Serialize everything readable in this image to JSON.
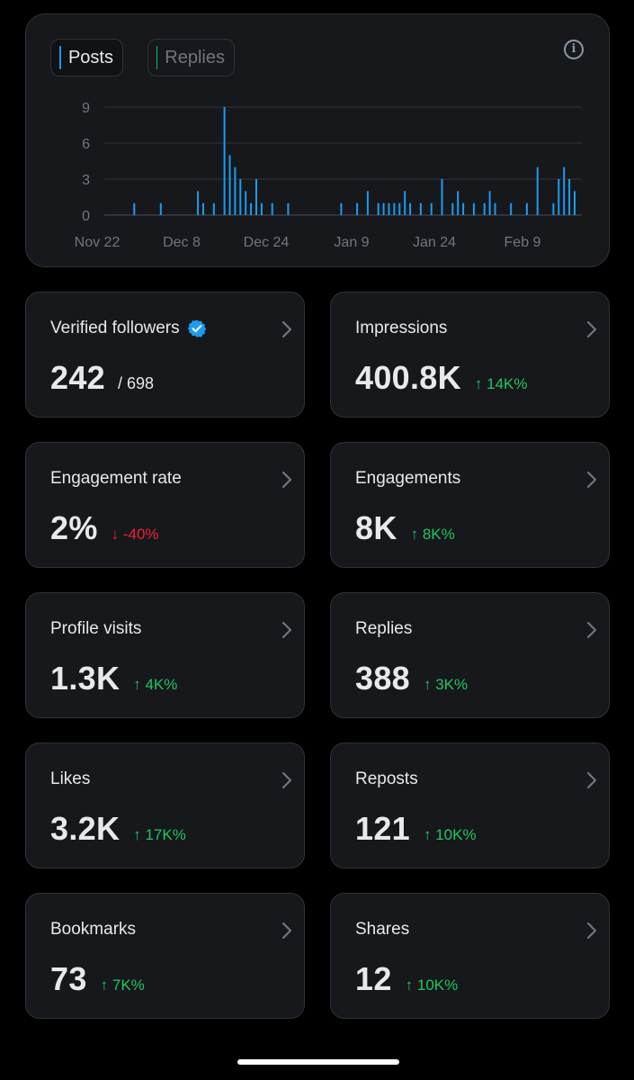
{
  "chart": {
    "tabs": [
      {
        "label": "Posts",
        "color": "#1d9bf0",
        "active": true
      },
      {
        "label": "Replies",
        "color": "#00ba7c",
        "active": false
      }
    ]
  },
  "chart_data": {
    "type": "bar",
    "series": [
      {
        "name": "Posts",
        "color": "#1d9bf0"
      }
    ],
    "x_ticks": [
      "Nov 22",
      "Dec 8",
      "Dec 24",
      "Jan 9",
      "Jan 24",
      "Feb 9"
    ],
    "y_ticks": [
      0,
      3,
      6,
      9
    ],
    "ylim": [
      0,
      9
    ],
    "xlim": [
      "2023-11-22",
      "2024-02-23"
    ],
    "x": [
      "2023-11-29",
      "2023-12-04",
      "2023-12-11",
      "2023-12-12",
      "2023-12-14",
      "2023-12-16",
      "2023-12-17",
      "2023-12-18",
      "2023-12-19",
      "2023-12-20",
      "2023-12-21",
      "2023-12-22",
      "2023-12-23",
      "2023-12-25",
      "2023-12-28",
      "2024-01-07",
      "2024-01-10",
      "2024-01-12",
      "2024-01-14",
      "2024-01-15",
      "2024-01-16",
      "2024-01-17",
      "2024-01-18",
      "2024-01-19",
      "2024-01-20",
      "2024-01-22",
      "2024-01-24",
      "2024-01-26",
      "2024-01-28",
      "2024-01-29",
      "2024-01-30",
      "2024-02-01",
      "2024-02-03",
      "2024-02-04",
      "2024-02-05",
      "2024-02-08",
      "2024-02-11",
      "2024-02-13",
      "2024-02-16",
      "2024-02-17",
      "2024-02-18",
      "2024-02-19",
      "2024-02-20"
    ],
    "values": [
      1,
      1,
      2,
      1,
      1,
      9,
      5,
      4,
      3,
      2,
      1,
      3,
      1,
      1,
      1,
      1,
      1,
      2,
      1,
      1,
      1,
      1,
      1,
      2,
      1,
      1,
      1,
      3,
      1,
      2,
      1,
      1,
      1,
      2,
      1,
      1,
      1,
      4,
      1,
      3,
      4,
      3,
      2
    ],
    "grid": true
  },
  "stats": [
    {
      "label": "Verified followers",
      "value": "242",
      "sub": "/ 698",
      "verified": true
    },
    {
      "label": "Impressions",
      "value": "400.8K",
      "delta": "↑ 14K%",
      "direction": "up"
    },
    {
      "label": "Engagement rate",
      "value": "2%",
      "delta": "↓ -40%",
      "direction": "down"
    },
    {
      "label": "Engagements",
      "value": "8K",
      "delta": "↑ 8K%",
      "direction": "up"
    },
    {
      "label": "Profile visits",
      "value": "1.3K",
      "delta": "↑ 4K%",
      "direction": "up"
    },
    {
      "label": "Replies",
      "value": "388",
      "delta": "↑ 3K%",
      "direction": "up"
    },
    {
      "label": "Likes",
      "value": "3.2K",
      "delta": "↑ 17K%",
      "direction": "up"
    },
    {
      "label": "Reposts",
      "value": "121",
      "delta": "↑ 10K%",
      "direction": "up"
    },
    {
      "label": "Bookmarks",
      "value": "73",
      "delta": "↑ 7K%",
      "direction": "up"
    },
    {
      "label": "Shares",
      "value": "12",
      "delta": "↑ 10K%",
      "direction": "up"
    }
  ],
  "icons": {
    "info": "info-icon",
    "chevron": "chevron-right-icon",
    "verified": "verified-badge-icon"
  },
  "colors": {
    "up": "#22c55e",
    "down": "#f4212e",
    "accent": "#1d9bf0"
  }
}
